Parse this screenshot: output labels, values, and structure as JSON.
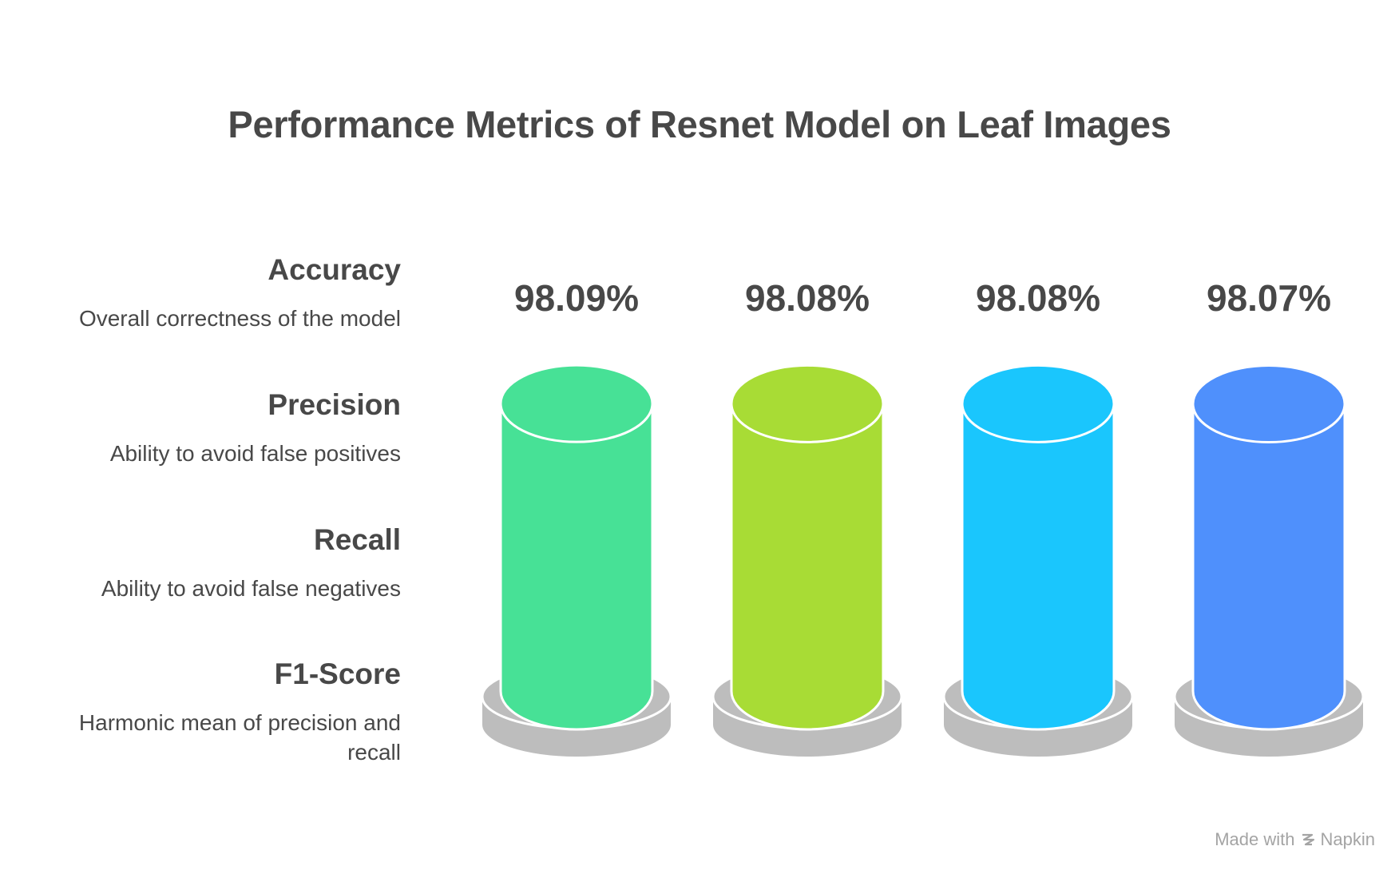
{
  "chart_data": {
    "type": "bar",
    "title": "Performance Metrics of Resnet Model on Leaf Images",
    "categories": [
      "Accuracy",
      "Precision",
      "Recall",
      "F1-Score"
    ],
    "descriptions": [
      "Overall correctness of the model",
      "Ability to avoid false positives",
      "Ability to avoid false negatives",
      "Harmonic mean of precision and recall"
    ],
    "values": [
      98.09,
      98.08,
      98.08,
      98.07
    ],
    "value_labels": [
      "98.09%",
      "98.08%",
      "98.08%",
      "98.07%"
    ],
    "colors": [
      "#47e196",
      "#a8dc35",
      "#1ac6fd",
      "#4f90fc"
    ],
    "pedestal_color": "#bdbdbd",
    "style": "cylinder"
  },
  "watermark": {
    "prefix": "Made with",
    "brand": "Napkin"
  }
}
